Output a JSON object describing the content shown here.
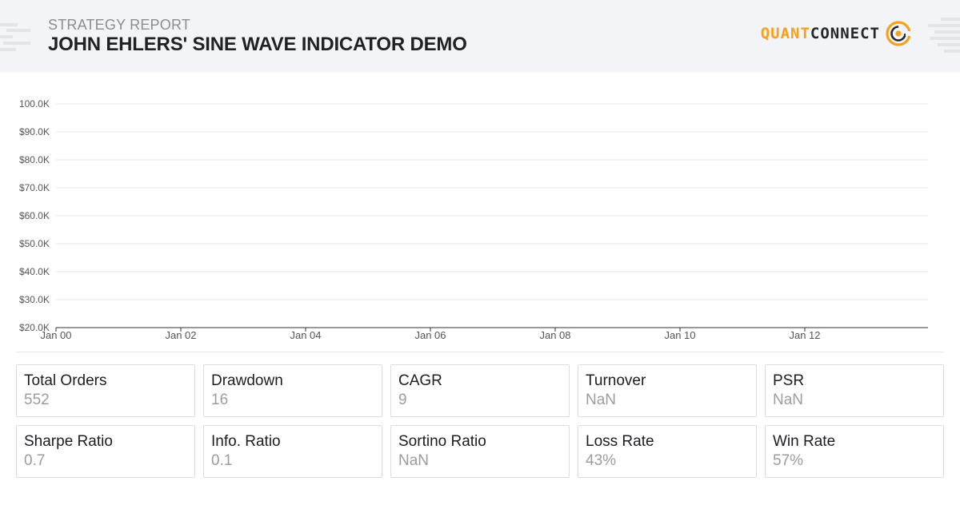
{
  "header": {
    "subtitle": "STRATEGY REPORT",
    "title": "JOHN EHLERS' SINE WAVE INDICATOR DEMO",
    "logo_quant": "QUANT",
    "logo_connect": "CONNECT"
  },
  "chart_data": {
    "type": "line",
    "title": "",
    "xlabel": "",
    "ylabel": "",
    "y_ticks": [
      "100.0K",
      "$90.0K",
      "$80.0K",
      "$70.0K",
      "$60.0K",
      "$50.0K",
      "$40.0K",
      "$30.0K",
      "$20.0K"
    ],
    "x_ticks": [
      "Jan 00",
      "Jan 02",
      "Jan 04",
      "Jan 06",
      "Jan 08",
      "Jan 10",
      "Jan 12"
    ],
    "ylim": [
      20000,
      100000
    ],
    "grid": true,
    "series": []
  },
  "stats": [
    {
      "label": "Total Orders",
      "value": "552"
    },
    {
      "label": "Drawdown",
      "value": "16"
    },
    {
      "label": "CAGR",
      "value": "9"
    },
    {
      "label": "Turnover",
      "value": "NaN"
    },
    {
      "label": "PSR",
      "value": "NaN"
    },
    {
      "label": "Sharpe Ratio",
      "value": "0.7"
    },
    {
      "label": "Info. Ratio",
      "value": "0.1"
    },
    {
      "label": "Sortino Ratio",
      "value": "NaN"
    },
    {
      "label": "Loss Rate",
      "value": "43%"
    },
    {
      "label": "Win Rate",
      "value": "57%"
    }
  ],
  "colors": {
    "accent": "#f5a11d",
    "header_bg": "#f3f4f7",
    "grid": "#e4e5ea"
  }
}
